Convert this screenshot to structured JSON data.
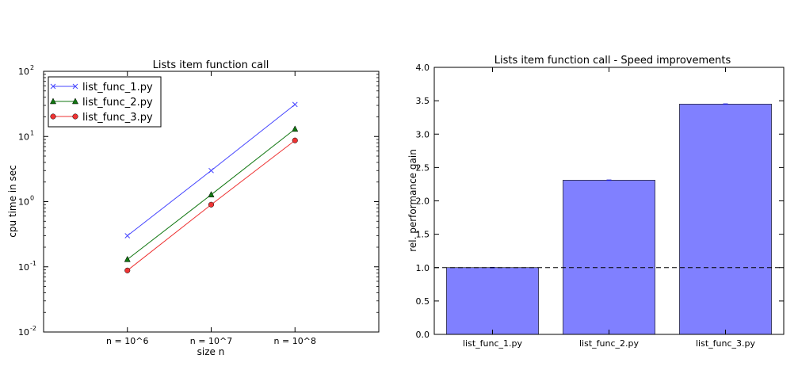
{
  "chart_data": [
    {
      "type": "line",
      "title": "Lists item function call",
      "xlabel": "size n",
      "ylabel": "cpu time in sec",
      "yscale": "log",
      "categories": [
        "n = 10^6",
        "n = 10^7",
        "n = 10^8"
      ],
      "ylim": [
        0.01,
        100
      ],
      "yticks": [
        {
          "base": "10",
          "exp": "-2",
          "value": 0.01
        },
        {
          "base": "10",
          "exp": "-1",
          "value": 0.1
        },
        {
          "base": "10",
          "exp": "0",
          "value": 1
        },
        {
          "base": "10",
          "exp": "1",
          "value": 10
        },
        {
          "base": "10",
          "exp": "2",
          "value": 100
        }
      ],
      "legend_position": "top-left",
      "grid": false,
      "series": [
        {
          "name": "list_func_1.py",
          "color": "#4444ff",
          "marker": "x",
          "values": [
            0.3,
            3.0,
            31
          ]
        },
        {
          "name": "list_func_2.py",
          "color": "#117711",
          "marker": "triangle",
          "values": [
            0.13,
            1.28,
            13
          ]
        },
        {
          "name": "list_func_3.py",
          "color": "#ee3333",
          "marker": "circle",
          "values": [
            0.088,
            0.9,
            8.7
          ]
        }
      ]
    },
    {
      "type": "bar",
      "title": "Lists item function call - Speed improvements",
      "xlabel": "",
      "ylabel": "rel. performance gain",
      "categories": [
        "list_func_1.py",
        "list_func_2.py",
        "list_func_3.py"
      ],
      "values": [
        1.0,
        2.31,
        3.45
      ],
      "ylim": [
        0,
        4.0
      ],
      "yticks": [
        "0.0",
        "0.5",
        "1.0",
        "1.5",
        "2.0",
        "2.5",
        "3.0",
        "3.5",
        "4.0"
      ],
      "reference_line": 1.0,
      "bar_color": "#8080ff",
      "grid": false
    }
  ]
}
